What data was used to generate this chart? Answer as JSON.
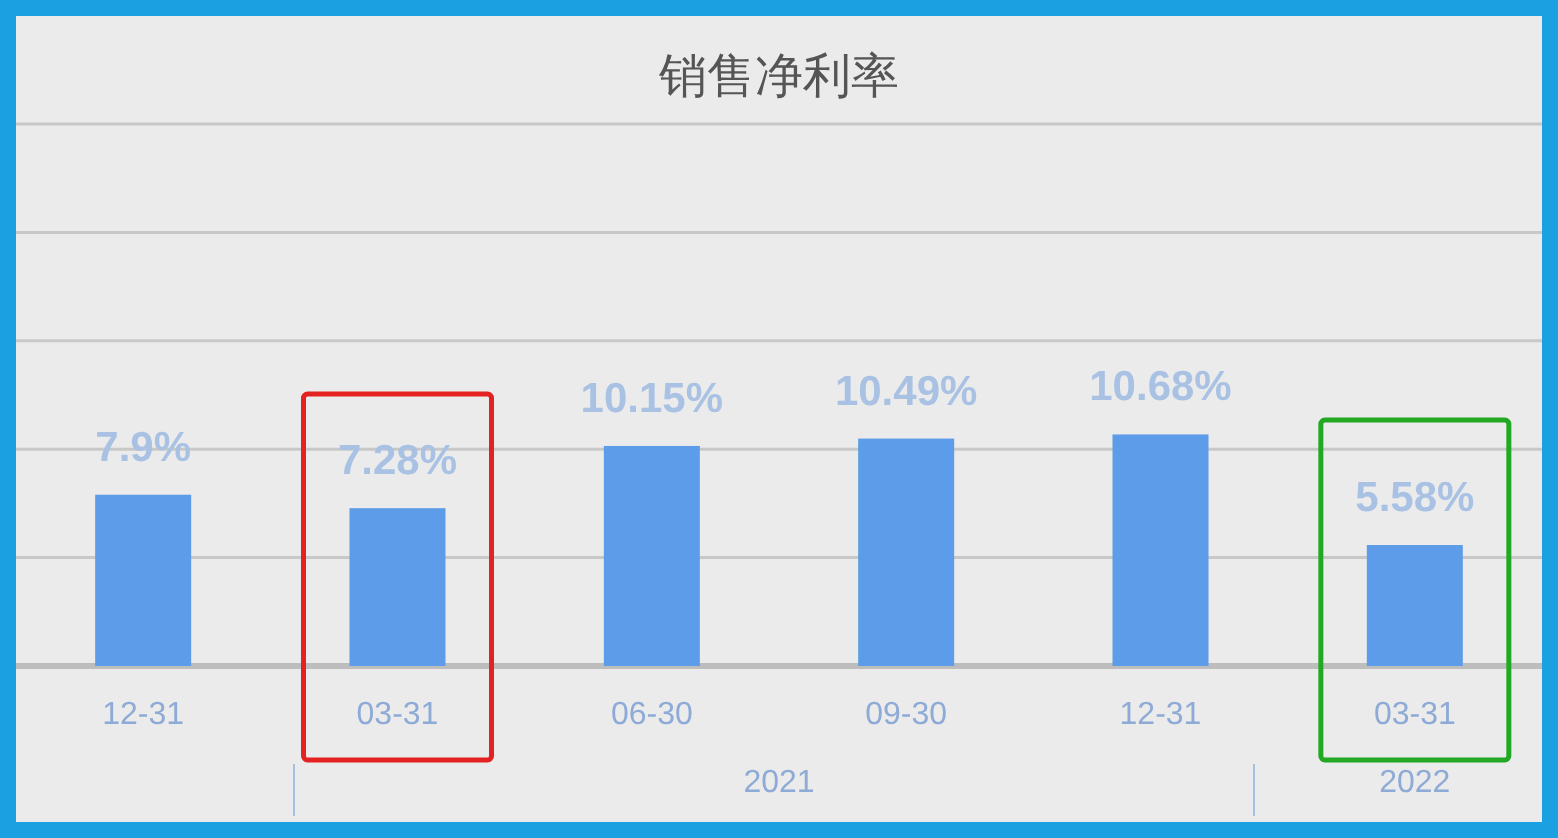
{
  "chart_data": {
    "type": "bar",
    "title": "销售净利率",
    "categories": [
      "12-31",
      "03-31",
      "06-30",
      "09-30",
      "12-31",
      "03-31"
    ],
    "values": [
      7.9,
      7.28,
      10.15,
      10.49,
      10.68,
      5.58
    ],
    "value_labels": [
      "7.9%",
      "7.28%",
      "10.15%",
      "10.49%",
      "10.68%",
      "5.58%"
    ],
    "color": "#5d9ce8",
    "ylim": [
      0,
      25
    ],
    "yticks": [
      {
        "value": 0,
        "label": null
      },
      {
        "value": 5,
        "label": null
      },
      {
        "value": 10,
        "label": null
      },
      {
        "value": 15,
        "label": null
      },
      {
        "value": 20,
        "label": null
      },
      {
        "value": 25,
        "label": null
      }
    ],
    "grid": "y",
    "annotations": [
      "2021",
      "2022"
    ]
  }
}
